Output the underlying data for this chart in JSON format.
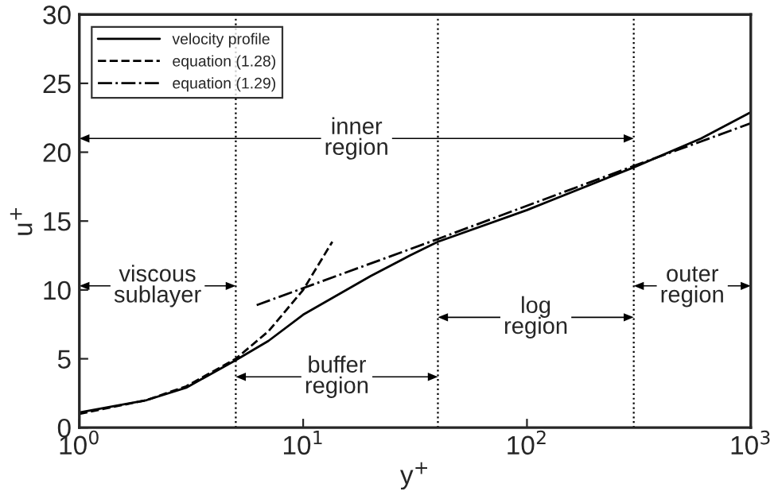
{
  "chart_data": {
    "type": "line",
    "xlabel": "y$^{+}$",
    "ylabel": "u$^{+}$",
    "log": "x",
    "xlim": [
      1,
      1000
    ],
    "ylim": [
      0,
      30
    ],
    "xticks": [
      {
        "value": 1,
        "label": "10$^{0}$"
      },
      {
        "value": 10,
        "label": "10$^{1}$"
      },
      {
        "value": 100,
        "label": "10$^{2}$"
      },
      {
        "value": 1000,
        "label": "10$^{3}$"
      }
    ],
    "yticks": [
      0,
      5,
      10,
      15,
      20,
      25,
      30
    ],
    "grid": false,
    "legend": "top left",
    "series": [
      {
        "name": "velocity profile",
        "color": "#000000",
        "line_style": "solid",
        "x": [
          1,
          2,
          3,
          5,
          7,
          10,
          20,
          30,
          40,
          100,
          300,
          600,
          1000
        ],
        "values": [
          1.1,
          2.0,
          2.9,
          4.9,
          6.3,
          8.2,
          11.0,
          12.5,
          13.5,
          15.8,
          18.9,
          21.0,
          22.9
        ]
      },
      {
        "name": "equation (1.28)",
        "color": "#000000",
        "line_style": "dashed",
        "x": [
          1,
          2,
          3,
          5,
          7,
          10,
          13.5
        ],
        "values": [
          1,
          2,
          3,
          5,
          7,
          10,
          13.5
        ]
      },
      {
        "name": "equation (1.29)",
        "color": "#000000",
        "line_style": "dashdot",
        "x": [
          6.2,
          40,
          300,
          1000
        ],
        "values": [
          8.9,
          13.7,
          19.0,
          22.1
        ]
      }
    ],
    "ref_lines": [
      {
        "axis": "x",
        "value": 5,
        "color": "#000000",
        "line_style": "dotted"
      },
      {
        "axis": "x",
        "value": 40,
        "color": "#000000",
        "line_style": "dotted"
      },
      {
        "axis": "x",
        "value": 300,
        "color": "#000000",
        "line_style": "dotted"
      }
    ],
    "annotations": [
      "inner\nregion",
      "viscous\nsublayer",
      "buffer\nregion",
      "log\nregion",
      "outer\nregion"
    ]
  }
}
